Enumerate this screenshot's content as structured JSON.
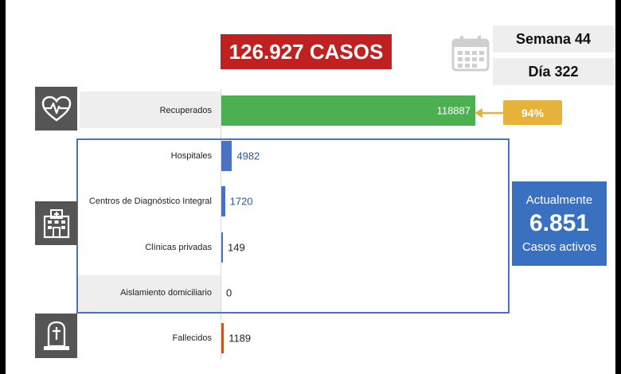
{
  "header": {
    "total_cases": "126.927 CASOS",
    "week": "Semana 44",
    "day": "Día 322"
  },
  "icons": {
    "calendar": "calendar-icon",
    "recovered": "heart-pulse-icon",
    "hospital": "hospital-icon",
    "deceased": "tombstone-icon"
  },
  "chart_data": {
    "type": "bar",
    "orientation": "horizontal",
    "categories": [
      "Recuperados",
      "Hospitales",
      "Centros de Diagnóstico Integral",
      "Clínicas privadas",
      "Aislamiento domiciliario",
      "Fallecidos"
    ],
    "values": [
      118887,
      4982,
      1720,
      149,
      0,
      1189
    ],
    "value_labels": [
      "118887",
      "4982",
      "1720",
      "149",
      "0",
      "1189"
    ],
    "bar_colors": [
      "#4caf50",
      "#4a72c0",
      "#4a72c0",
      "#4a72c0",
      "#4a72c0",
      "#c65a1e"
    ],
    "label_colors": [
      "#ffffff",
      "#2f5597",
      "#2f5597",
      "#222222",
      "#222222",
      "#222222"
    ],
    "label_inside": [
      true,
      false,
      false,
      false,
      false,
      false
    ],
    "xlim": [
      0,
      118887
    ],
    "grid": false,
    "legend": "none"
  },
  "recovered_share": "94%",
  "active_cases": {
    "heading": "Actualmente",
    "value": "6.851",
    "subtitle": "Casos activos"
  },
  "colors": {
    "total_box": "#c0201f",
    "share_box": "#e6b23a",
    "active_box": "#3a70c0",
    "frame": "#4a72c0",
    "icon_tile": "#555555"
  }
}
